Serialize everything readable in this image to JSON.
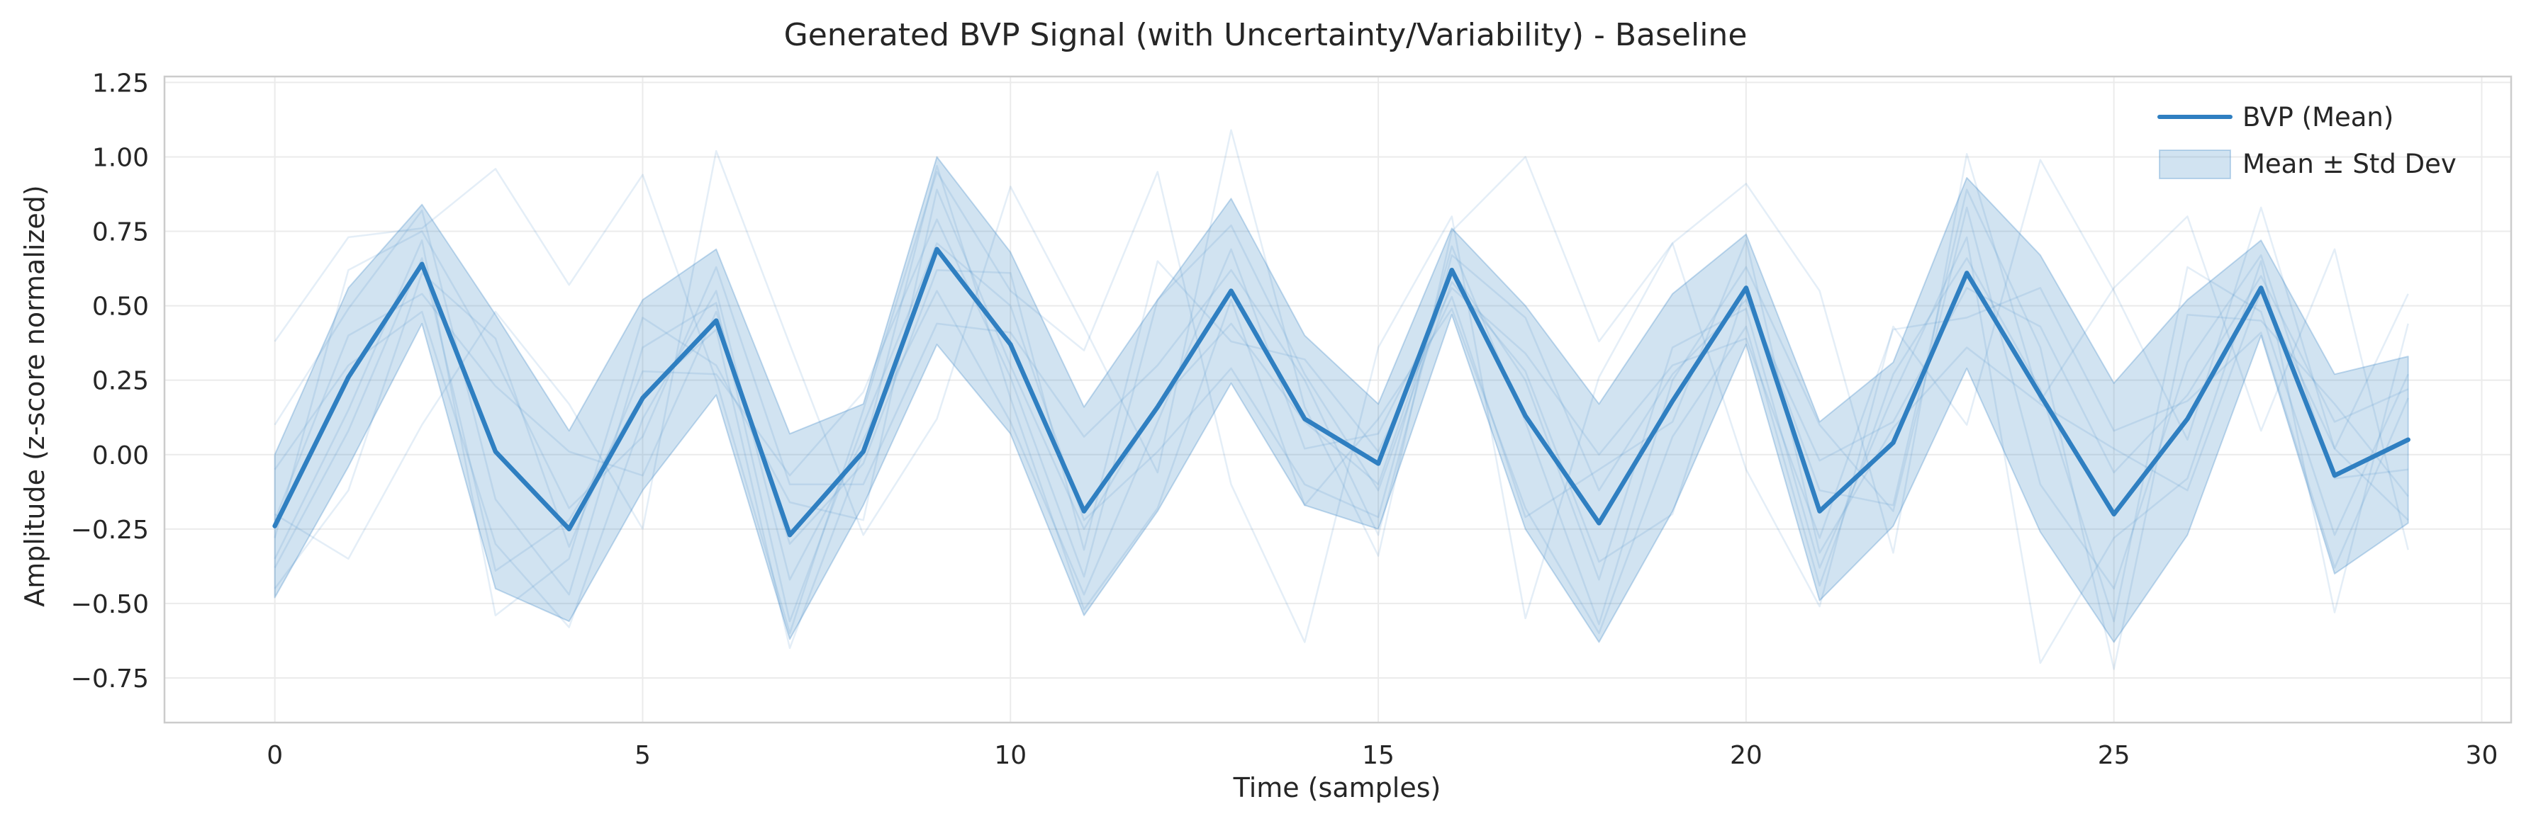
{
  "chart_data": {
    "type": "line",
    "title": "Generated BVP Signal (with Uncertainty/Variability) - Baseline",
    "xlabel": "Time (samples)",
    "ylabel": "Amplitude (z-score normalized)",
    "xlim": [
      -1.5,
      30.4
    ],
    "ylim": [
      -0.9,
      1.27
    ],
    "x_ticks": [
      0,
      5,
      10,
      15,
      20,
      25,
      30
    ],
    "y_ticks": [
      -0.75,
      -0.5,
      -0.25,
      0.0,
      0.25,
      0.5,
      0.75,
      1.0,
      1.25
    ],
    "x_tick_labels": [
      "0",
      "5",
      "10",
      "15",
      "20",
      "25",
      "30"
    ],
    "y_tick_labels": [
      "−0.75",
      "−0.50",
      "−0.25",
      "0.00",
      "0.25",
      "0.50",
      "0.75",
      "1.00",
      "1.25"
    ],
    "grid": true,
    "legend_position": "top-right",
    "x": [
      0,
      1,
      2,
      3,
      4,
      5,
      6,
      7,
      8,
      9,
      10,
      11,
      12,
      13,
      14,
      15,
      16,
      17,
      18,
      19,
      20,
      21,
      22,
      23,
      24,
      25,
      26,
      27,
      28,
      29
    ],
    "series": [
      {
        "name": "BVP (Mean)",
        "kind": "line",
        "color": "#2f7fc1",
        "values": [
          -0.24,
          0.26,
          0.64,
          0.01,
          -0.25,
          0.19,
          0.45,
          -0.27,
          0.01,
          0.69,
          0.37,
          -0.19,
          0.16,
          0.55,
          0.12,
          -0.03,
          0.62,
          0.13,
          -0.23,
          0.18,
          0.56,
          -0.19,
          0.04,
          0.61,
          0.2,
          -0.2,
          0.12,
          0.56,
          -0.07,
          0.05
        ]
      },
      {
        "name": "Mean ± Std Dev",
        "kind": "band",
        "color": "#2f7fc1",
        "upper": [
          0.0,
          0.56,
          0.84,
          0.47,
          0.08,
          0.52,
          0.69,
          0.07,
          0.17,
          1.0,
          0.68,
          0.16,
          0.52,
          0.86,
          0.4,
          0.17,
          0.76,
          0.5,
          0.17,
          0.54,
          0.74,
          0.11,
          0.31,
          0.93,
          0.67,
          0.24,
          0.52,
          0.72,
          0.27,
          0.33
        ],
        "lower": [
          -0.48,
          -0.04,
          0.44,
          -0.45,
          -0.56,
          -0.12,
          0.2,
          -0.62,
          -0.17,
          0.37,
          0.07,
          -0.54,
          -0.19,
          0.24,
          -0.17,
          -0.25,
          0.47,
          -0.25,
          -0.63,
          -0.19,
          0.37,
          -0.49,
          -0.24,
          0.29,
          -0.26,
          -0.63,
          -0.27,
          0.4,
          -0.4,
          -0.23
        ]
      }
    ],
    "samples": [
      [
        0.38,
        0.73,
        0.76,
        0.96,
        0.57,
        0.94,
        0.25,
        -0.6,
        0.15,
        0.95,
        0.55,
        0.35,
        0.95,
        -0.1,
        -0.63,
        0.36,
        0.8,
        -0.55,
        0.26,
        0.71,
        0.91,
        0.55,
        -0.33,
        1.01,
        0.18,
        0.56,
        0.8,
        0.08,
        0.69,
        -0.32
      ],
      [
        -0.2,
        -0.35,
        0.1,
        0.48,
        0.17,
        -0.25,
        1.02,
        0.37,
        -0.27,
        0.12,
        0.9,
        0.43,
        -0.06,
        1.09,
        0.16,
        -0.34,
        0.75,
        1.0,
        0.38,
        0.71,
        -0.05,
        -0.51,
        0.43,
        0.1,
        0.99,
        0.55,
        0.05,
        0.83,
        0.02,
        0.54
      ],
      [
        -0.35,
        0.15,
        0.72,
        -0.54,
        -0.35,
        0.46,
        0.3,
        -0.16,
        -0.22,
        0.89,
        0.3,
        -0.25,
        0.17,
        0.44,
        0.11,
        -0.1,
        0.62,
        0.25,
        -0.42,
        0.36,
        0.49,
        -0.38,
        0.2,
        0.73,
        -0.7,
        -0.28,
        -0.08,
        0.65,
        -0.53,
        0.44
      ],
      [
        -0.05,
        0.3,
        0.48,
        -0.3,
        -0.58,
        0.12,
        0.55,
        -0.42,
        0.05,
        0.55,
        0.11,
        -0.47,
        0.11,
        0.69,
        0.02,
        0.07,
        0.56,
        0.34,
        0.0,
        0.3,
        0.39,
        -0.28,
        0.42,
        0.46,
        0.56,
        0.08,
        0.18,
        0.41,
        -0.38,
        0.19
      ],
      [
        -0.45,
        -0.12,
        0.61,
        0.39,
        -0.31,
        0.28,
        0.27,
        -0.07,
        0.21,
        0.79,
        0.26,
        -0.41,
        0.52,
        0.77,
        0.27,
        -0.12,
        0.58,
        0.28,
        -0.36,
        -0.2,
        0.56,
        -0.12,
        -0.17,
        0.89,
        0.36,
        -0.72,
        0.47,
        0.45,
        0.17,
        -0.14
      ],
      [
        0.1,
        0.49,
        0.82,
        -0.15,
        -0.47,
        0.36,
        0.51,
        -0.56,
        0.1,
        0.71,
        0.5,
        -0.22,
        0.01,
        0.29,
        -0.1,
        -0.21,
        0.7,
        0.11,
        -0.57,
        0.25,
        0.63,
        0.1,
        -0.19,
        0.83,
        -0.1,
        -0.45,
        0.31,
        0.67,
        -0.08,
        -0.05
      ],
      [
        -0.22,
        0.4,
        0.54,
        0.23,
        0.01,
        -0.07,
        0.48,
        -0.3,
        -0.03,
        0.62,
        0.61,
        -0.32,
        0.65,
        0.38,
        0.32,
        0.01,
        0.53,
        -0.21,
        -0.05,
        0.11,
        0.72,
        -0.33,
        0.09,
        0.36,
        0.17,
        0.02,
        -0.12,
        0.55,
        0.02,
        -0.22
      ],
      [
        -0.38,
        0.08,
        0.66,
        -0.39,
        -0.22,
        0.2,
        0.42,
        -0.65,
        0.01,
        0.97,
        0.19,
        -0.52,
        -0.18,
        0.52,
        -0.17,
        0.12,
        0.49,
        -0.18,
        -0.6,
        0.06,
        0.43,
        -0.44,
        0.27,
        0.66,
        0.22,
        -0.56,
        0.63,
        0.48,
        -0.27,
        0.27
      ],
      [
        -0.28,
        0.62,
        0.75,
        0.32,
        -0.18,
        0.06,
        0.63,
        -0.1,
        -0.1,
        0.44,
        0.41,
        0.06,
        0.3,
        0.62,
        0.25,
        -0.27,
        0.67,
        0.46,
        -0.12,
        0.27,
        0.52,
        -0.02,
        0.11,
        0.56,
        0.43,
        -0.06,
        0.2,
        0.6,
        0.11,
        0.22
      ]
    ]
  }
}
